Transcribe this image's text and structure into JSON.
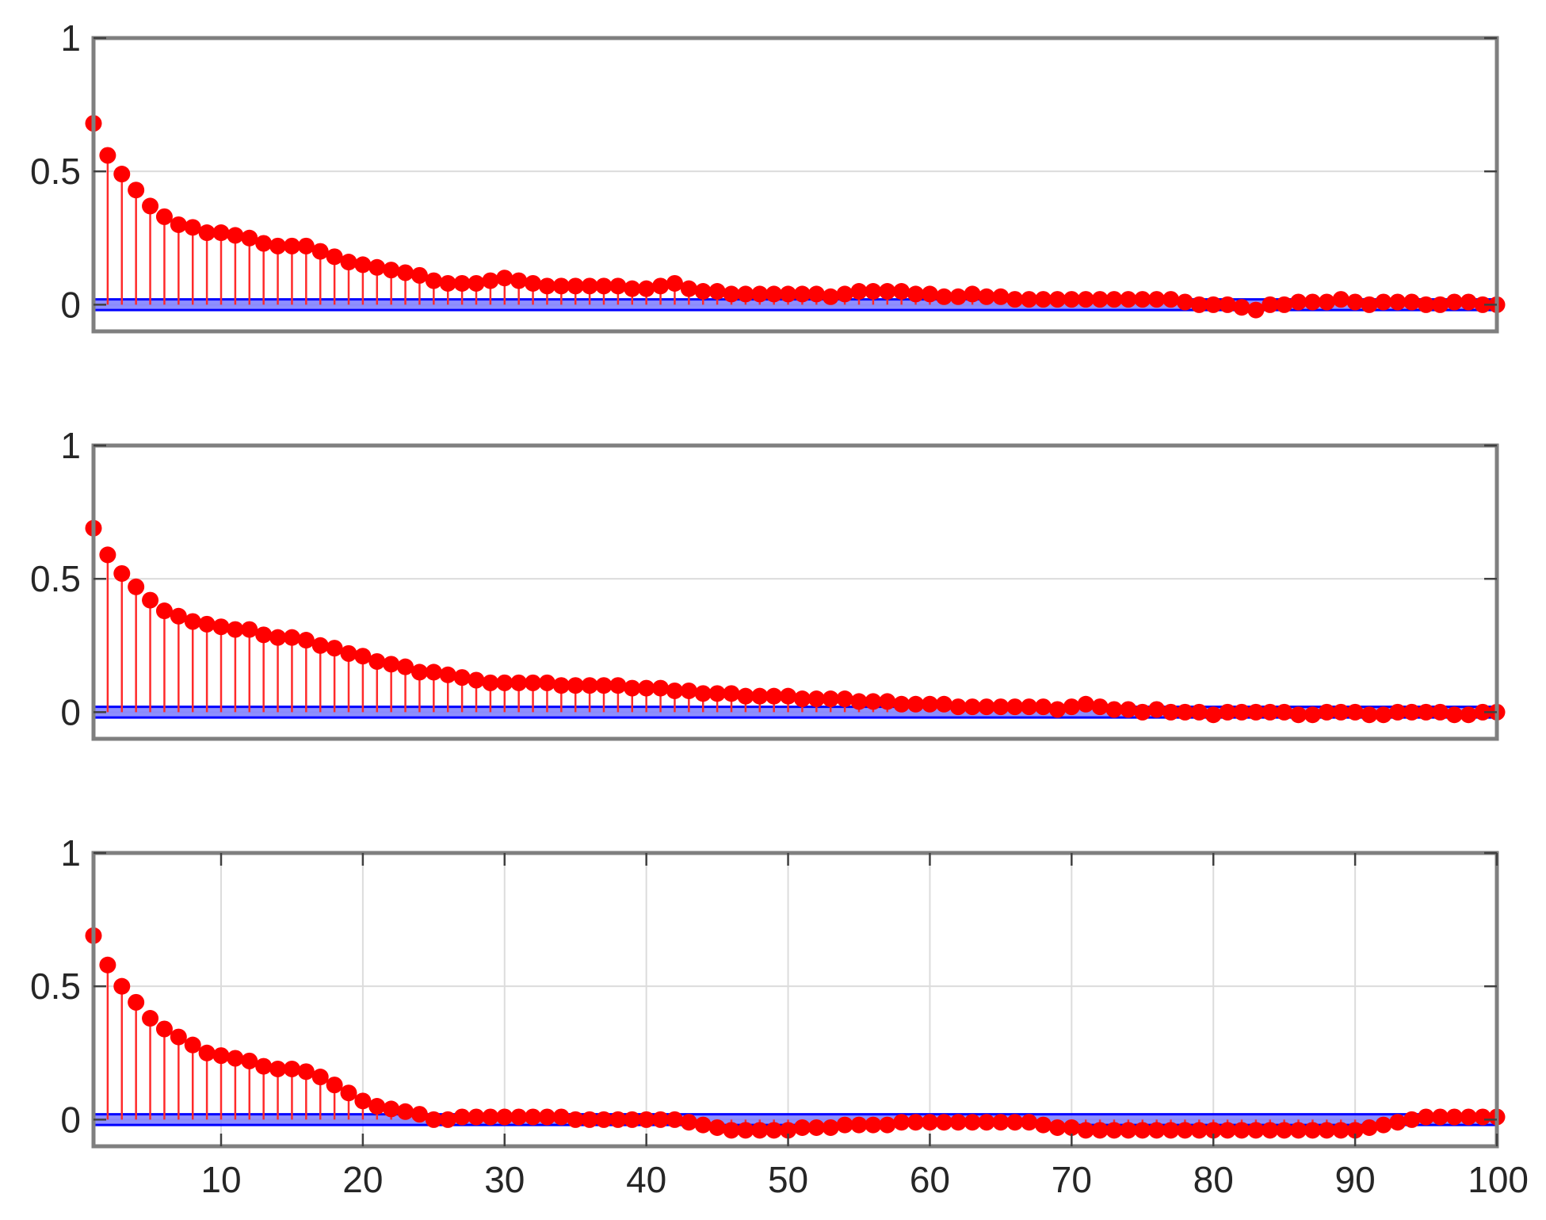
{
  "chart_data": [
    {
      "type": "stem",
      "ylim": [
        -0.1,
        1
      ],
      "xlim": [
        1,
        100
      ],
      "yticks": [
        0,
        0.5,
        1
      ],
      "ytick_labels": [
        "0",
        "0.5",
        "1"
      ],
      "xticks": [],
      "xtick_labels": [],
      "grid": {
        "x": false,
        "y": true
      },
      "confidence_band": [
        -0.02,
        0.02
      ],
      "series": [
        {
          "values": [
            0.68,
            0.56,
            0.49,
            0.43,
            0.37,
            0.33,
            0.3,
            0.29,
            0.27,
            0.27,
            0.26,
            0.25,
            0.23,
            0.22,
            0.22,
            0.22,
            0.2,
            0.18,
            0.16,
            0.15,
            0.14,
            0.13,
            0.12,
            0.11,
            0.09,
            0.08,
            0.08,
            0.08,
            0.09,
            0.1,
            0.09,
            0.08,
            0.07,
            0.07,
            0.07,
            0.07,
            0.07,
            0.07,
            0.06,
            0.06,
            0.07,
            0.08,
            0.06,
            0.05,
            0.05,
            0.04,
            0.04,
            0.04,
            0.04,
            0.04,
            0.04,
            0.04,
            0.03,
            0.04,
            0.05,
            0.05,
            0.05,
            0.05,
            0.04,
            0.04,
            0.03,
            0.03,
            0.04,
            0.03,
            0.03,
            0.02,
            0.02,
            0.02,
            0.02,
            0.02,
            0.02,
            0.02,
            0.02,
            0.02,
            0.02,
            0.02,
            0.02,
            0.01,
            0.0,
            0.0,
            0.0,
            -0.01,
            -0.02,
            0.0,
            0.0,
            0.01,
            0.01,
            0.01,
            0.02,
            0.01,
            0.0,
            0.01,
            0.01,
            0.01,
            0.0,
            0.0,
            0.01,
            0.01,
            0.0,
            0.0
          ]
        }
      ]
    },
    {
      "type": "stem",
      "ylim": [
        -0.1,
        1
      ],
      "xlim": [
        1,
        100
      ],
      "yticks": [
        0,
        0.5,
        1
      ],
      "ytick_labels": [
        "0",
        "0.5",
        "1"
      ],
      "xticks": [],
      "xtick_labels": [],
      "grid": {
        "x": false,
        "y": true
      },
      "confidence_band": [
        -0.02,
        0.02
      ],
      "series": [
        {
          "values": [
            0.69,
            0.59,
            0.52,
            0.47,
            0.42,
            0.38,
            0.36,
            0.34,
            0.33,
            0.32,
            0.31,
            0.31,
            0.29,
            0.28,
            0.28,
            0.27,
            0.25,
            0.24,
            0.22,
            0.21,
            0.19,
            0.18,
            0.17,
            0.15,
            0.15,
            0.14,
            0.13,
            0.12,
            0.11,
            0.11,
            0.11,
            0.11,
            0.11,
            0.1,
            0.1,
            0.1,
            0.1,
            0.1,
            0.09,
            0.09,
            0.09,
            0.08,
            0.08,
            0.07,
            0.07,
            0.07,
            0.06,
            0.06,
            0.06,
            0.06,
            0.05,
            0.05,
            0.05,
            0.05,
            0.04,
            0.04,
            0.04,
            0.03,
            0.03,
            0.03,
            0.03,
            0.02,
            0.02,
            0.02,
            0.02,
            0.02,
            0.02,
            0.02,
            0.01,
            0.02,
            0.03,
            0.02,
            0.01,
            0.01,
            0.0,
            0.01,
            0.0,
            0.0,
            0.0,
            -0.01,
            0.0,
            0.0,
            0.0,
            0.0,
            0.0,
            -0.01,
            -0.01,
            0.0,
            0.0,
            0.0,
            -0.01,
            -0.01,
            0.0,
            0.0,
            0.0,
            0.0,
            -0.01,
            -0.01,
            0.0,
            0.0
          ]
        }
      ]
    },
    {
      "type": "stem",
      "ylim": [
        -0.1,
        1
      ],
      "xlim": [
        1,
        100
      ],
      "yticks": [
        0,
        0.5,
        1
      ],
      "ytick_labels": [
        "0",
        "0.5",
        "1"
      ],
      "xticks": [
        10,
        20,
        30,
        40,
        50,
        60,
        70,
        80,
        90,
        100
      ],
      "xtick_labels": [
        "10",
        "20",
        "30",
        "40",
        "50",
        "60",
        "70",
        "80",
        "90",
        "100"
      ],
      "grid": {
        "x": true,
        "y": true
      },
      "confidence_band": [
        -0.02,
        0.02
      ],
      "series": [
        {
          "values": [
            0.69,
            0.58,
            0.5,
            0.44,
            0.38,
            0.34,
            0.31,
            0.28,
            0.25,
            0.24,
            0.23,
            0.22,
            0.2,
            0.19,
            0.19,
            0.18,
            0.16,
            0.13,
            0.1,
            0.07,
            0.05,
            0.04,
            0.03,
            0.02,
            0.0,
            0.0,
            0.01,
            0.01,
            0.01,
            0.01,
            0.01,
            0.01,
            0.01,
            0.01,
            0.0,
            0.0,
            0.0,
            0.0,
            0.0,
            0.0,
            0.0,
            0.0,
            -0.01,
            -0.02,
            -0.03,
            -0.04,
            -0.04,
            -0.04,
            -0.04,
            -0.04,
            -0.03,
            -0.03,
            -0.03,
            -0.02,
            -0.02,
            -0.02,
            -0.02,
            -0.01,
            -0.01,
            -0.01,
            -0.01,
            -0.01,
            -0.01,
            -0.01,
            -0.01,
            -0.01,
            -0.01,
            -0.02,
            -0.03,
            -0.03,
            -0.04,
            -0.04,
            -0.04,
            -0.04,
            -0.04,
            -0.04,
            -0.04,
            -0.04,
            -0.04,
            -0.04,
            -0.04,
            -0.04,
            -0.04,
            -0.04,
            -0.04,
            -0.04,
            -0.04,
            -0.04,
            -0.04,
            -0.04,
            -0.03,
            -0.02,
            -0.01,
            0.0,
            0.01,
            0.01,
            0.01,
            0.01,
            0.01,
            0.01
          ]
        }
      ]
    }
  ]
}
